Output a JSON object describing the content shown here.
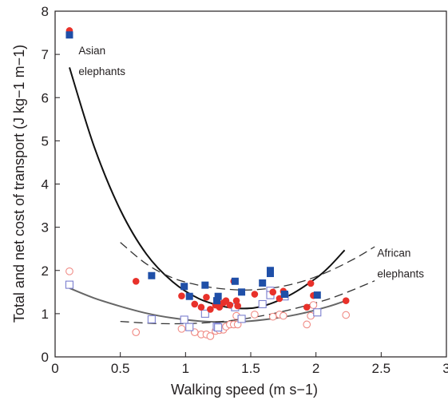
{
  "chart_data": {
    "type": "scatter",
    "xlabel": "Walking speed (m s−1)",
    "ylabel": "Total and net cost of transport (J kg−1 m−1)",
    "xlim": [
      0,
      3
    ],
    "ylim": [
      0,
      8
    ],
    "x_ticks": [
      0,
      0.5,
      1,
      1.5,
      2,
      2.5,
      3
    ],
    "x_tick_labels": [
      "0",
      "0.5",
      "1",
      "1.5",
      "2",
      "2.5",
      "3"
    ],
    "y_ticks": [
      0,
      1,
      2,
      3,
      4,
      5,
      6,
      7,
      8
    ],
    "y_tick_labels": [
      "0",
      "1",
      "2",
      "3",
      "4",
      "5",
      "6",
      "7",
      "8"
    ],
    "grid": false,
    "legend": "none",
    "annotations": [
      {
        "lines": [
          "Asian",
          "elephants"
        ],
        "x": 0.18,
        "y": 7.0
      },
      {
        "lines": [
          "African",
          "elephants"
        ],
        "x": 2.47,
        "y": 2.32
      }
    ],
    "series": [
      {
        "marker": "filled-square",
        "color": "#1f4fa8",
        "points": [
          [
            0.11,
            7.45
          ],
          [
            0.74,
            1.88
          ],
          [
            0.99,
            1.63
          ],
          [
            1.03,
            1.4
          ],
          [
            1.15,
            1.66
          ],
          [
            1.24,
            1.3
          ],
          [
            1.25,
            1.4
          ],
          [
            1.38,
            1.75
          ],
          [
            1.43,
            1.5
          ],
          [
            1.59,
            1.71
          ],
          [
            1.65,
            2.0
          ],
          [
            1.65,
            1.93
          ],
          [
            1.76,
            1.45
          ],
          [
            2.01,
            1.43
          ]
        ]
      },
      {
        "marker": "filled-circle",
        "color": "#e8312a",
        "points": [
          [
            0.11,
            7.55
          ],
          [
            0.62,
            1.75
          ],
          [
            0.97,
            1.41
          ],
          [
            1.07,
            1.22
          ],
          [
            1.12,
            1.15
          ],
          [
            1.16,
            1.38
          ],
          [
            1.19,
            1.1
          ],
          [
            1.23,
            1.2
          ],
          [
            1.26,
            1.15
          ],
          [
            1.29,
            1.25
          ],
          [
            1.31,
            1.3
          ],
          [
            1.34,
            1.2
          ],
          [
            1.37,
            1.75
          ],
          [
            1.39,
            1.3
          ],
          [
            1.4,
            1.18
          ],
          [
            1.53,
            1.45
          ],
          [
            1.67,
            1.5
          ],
          [
            1.72,
            1.35
          ],
          [
            1.75,
            1.52
          ],
          [
            1.93,
            1.15
          ],
          [
            1.96,
            1.7
          ],
          [
            1.98,
            1.42
          ],
          [
            2.23,
            1.3
          ]
        ]
      },
      {
        "marker": "open-square",
        "color": "#7b7fcf",
        "points": [
          [
            0.11,
            1.67
          ],
          [
            0.74,
            0.87
          ],
          [
            0.99,
            0.86
          ],
          [
            1.03,
            0.69
          ],
          [
            1.15,
            1.0
          ],
          [
            1.24,
            0.7
          ],
          [
            1.25,
            0.68
          ],
          [
            1.38,
            1.15
          ],
          [
            1.43,
            0.88
          ],
          [
            1.59,
            1.22
          ],
          [
            1.65,
            1.53
          ],
          [
            1.65,
            1.43
          ],
          [
            1.76,
            1.4
          ],
          [
            2.01,
            1.03
          ]
        ]
      },
      {
        "marker": "open-circle",
        "color": "#f08a84",
        "points": [
          [
            0.11,
            1.98
          ],
          [
            0.62,
            0.57
          ],
          [
            0.97,
            0.65
          ],
          [
            1.07,
            0.57
          ],
          [
            1.12,
            0.52
          ],
          [
            1.16,
            0.52
          ],
          [
            1.19,
            0.48
          ],
          [
            1.23,
            0.6
          ],
          [
            1.26,
            0.62
          ],
          [
            1.29,
            0.63
          ],
          [
            1.31,
            0.7
          ],
          [
            1.34,
            0.75
          ],
          [
            1.37,
            0.75
          ],
          [
            1.39,
            0.95
          ],
          [
            1.4,
            0.75
          ],
          [
            1.53,
            0.98
          ],
          [
            1.67,
            0.93
          ],
          [
            1.72,
            0.98
          ],
          [
            1.75,
            0.95
          ],
          [
            1.93,
            0.75
          ],
          [
            1.96,
            0.95
          ],
          [
            1.98,
            1.2
          ],
          [
            2.23,
            0.97
          ]
        ]
      },
      {
        "type": "line",
        "style": "solid",
        "color": "#111111",
        "points": [
          [
            0.11,
            6.7
          ],
          [
            0.3,
            4.86
          ],
          [
            0.5,
            3.4
          ],
          [
            0.7,
            2.38
          ],
          [
            0.9,
            1.74
          ],
          [
            1.1,
            1.35
          ],
          [
            1.3,
            1.16
          ],
          [
            1.45,
            1.12
          ],
          [
            1.6,
            1.18
          ],
          [
            1.8,
            1.43
          ],
          [
            2.0,
            1.82
          ],
          [
            2.1,
            2.08
          ],
          [
            2.22,
            2.47
          ]
        ]
      },
      {
        "type": "line",
        "style": "dashed",
        "color": "#333333",
        "points": [
          [
            0.5,
            2.65
          ],
          [
            0.7,
            2.15
          ],
          [
            0.9,
            1.83
          ],
          [
            1.1,
            1.66
          ],
          [
            1.3,
            1.57
          ],
          [
            1.5,
            1.55
          ],
          [
            1.7,
            1.61
          ],
          [
            1.9,
            1.75
          ],
          [
            2.1,
            1.98
          ],
          [
            2.3,
            2.28
          ],
          [
            2.45,
            2.55
          ]
        ]
      },
      {
        "type": "line",
        "style": "solid",
        "color": "#666666",
        "points": [
          [
            0.11,
            1.59
          ],
          [
            0.3,
            1.36
          ],
          [
            0.5,
            1.17
          ],
          [
            0.7,
            1.01
          ],
          [
            0.9,
            0.9
          ],
          [
            1.1,
            0.83
          ],
          [
            1.3,
            0.81
          ],
          [
            1.5,
            0.83
          ],
          [
            1.7,
            0.9
          ],
          [
            1.9,
            1.01
          ],
          [
            2.1,
            1.17
          ],
          [
            2.22,
            1.29
          ]
        ]
      },
      {
        "type": "line",
        "style": "dashed",
        "color": "#333333",
        "points": [
          [
            0.5,
            0.82
          ],
          [
            0.8,
            0.77
          ],
          [
            1.1,
            0.78
          ],
          [
            1.4,
            0.86
          ],
          [
            1.7,
            1.02
          ],
          [
            2.0,
            1.25
          ],
          [
            2.2,
            1.45
          ],
          [
            2.45,
            1.76
          ]
        ]
      }
    ]
  }
}
